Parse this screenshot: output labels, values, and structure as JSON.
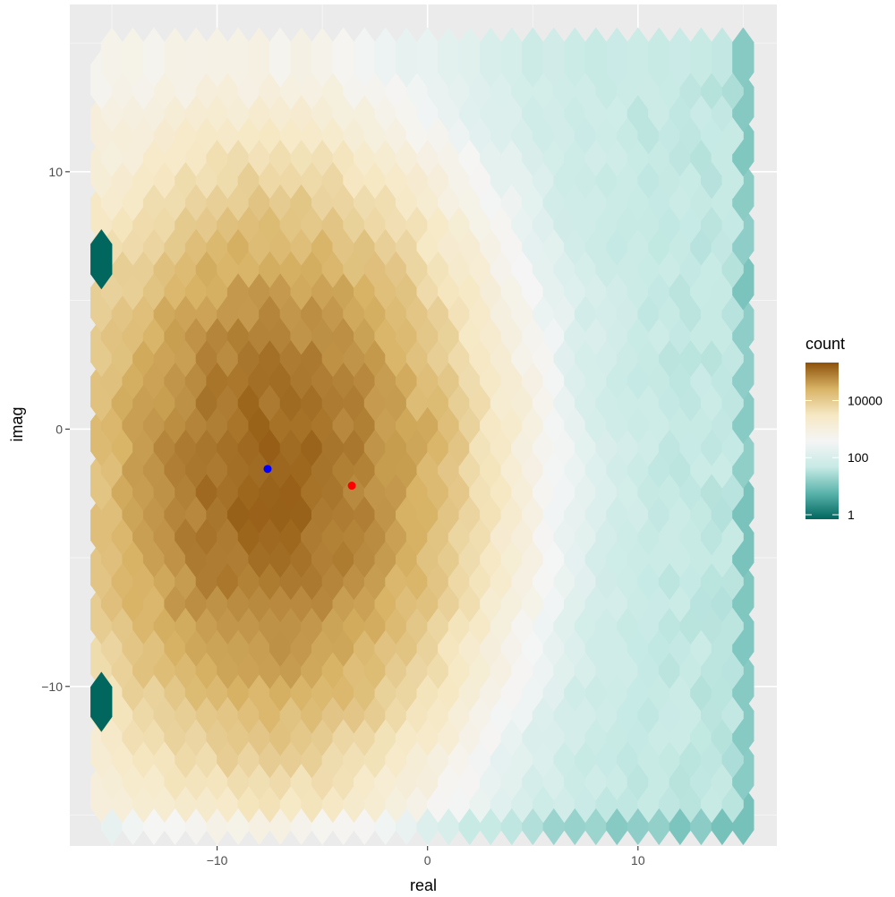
{
  "chart_data": {
    "type": "heatmap",
    "subtype": "hexbin",
    "xlabel": "real",
    "ylabel": "imag",
    "xlim": [
      -17,
      16.6
    ],
    "ylim": [
      -16.2,
      16.5
    ],
    "x_ticks": [
      {
        "value": -10,
        "label": "−10"
      },
      {
        "value": 0,
        "label": "0"
      },
      {
        "value": 10,
        "label": "10"
      }
    ],
    "y_ticks": [
      {
        "value": -10,
        "label": "−10"
      },
      {
        "value": 0,
        "label": "0"
      },
      {
        "value": 10,
        "label": "10"
      }
    ],
    "minor_x": [
      -15,
      -5,
      5,
      15
    ],
    "minor_y": [
      -15,
      -5,
      5,
      15
    ],
    "grid": true,
    "panel_background": "#ebebeb",
    "legend": {
      "title": "count",
      "placement": "right",
      "scale": "log10",
      "range": [
        1,
        150000
      ],
      "ticks": [
        {
          "value": 1,
          "label": "1"
        },
        {
          "value": 100,
          "label": "100"
        },
        {
          "value": 10000,
          "label": "10000"
        }
      ],
      "colors": [
        "#01665e",
        "#5ab4ac",
        "#c7eae5",
        "#f5f5f5",
        "#f6e8c3",
        "#d8b365",
        "#8c510a"
      ]
    },
    "hexbin_grid": {
      "x_range": [
        -15,
        15
      ],
      "y_range": [
        -15,
        15
      ],
      "columns": 31,
      "row_spacing": 0.866
    },
    "density_peak": {
      "x": -7.5,
      "y": -1.3,
      "peak_count": 100000,
      "spread_x": 4.0,
      "spread_y": 4.8
    },
    "secondary_peak": {
      "x": 0,
      "y": 0,
      "peak_count": 6000
    },
    "outlier_bins": [
      {
        "x": -15.5,
        "y": 6.6,
        "count": 1
      },
      {
        "x": -15.5,
        "y": -10.6,
        "count": 1
      }
    ],
    "points": [
      {
        "name": "blue-point",
        "x": -7.6,
        "y": -1.55,
        "color": "#0000ff"
      },
      {
        "name": "red-point",
        "x": -3.6,
        "y": -2.2,
        "color": "#ff0000"
      }
    ]
  }
}
